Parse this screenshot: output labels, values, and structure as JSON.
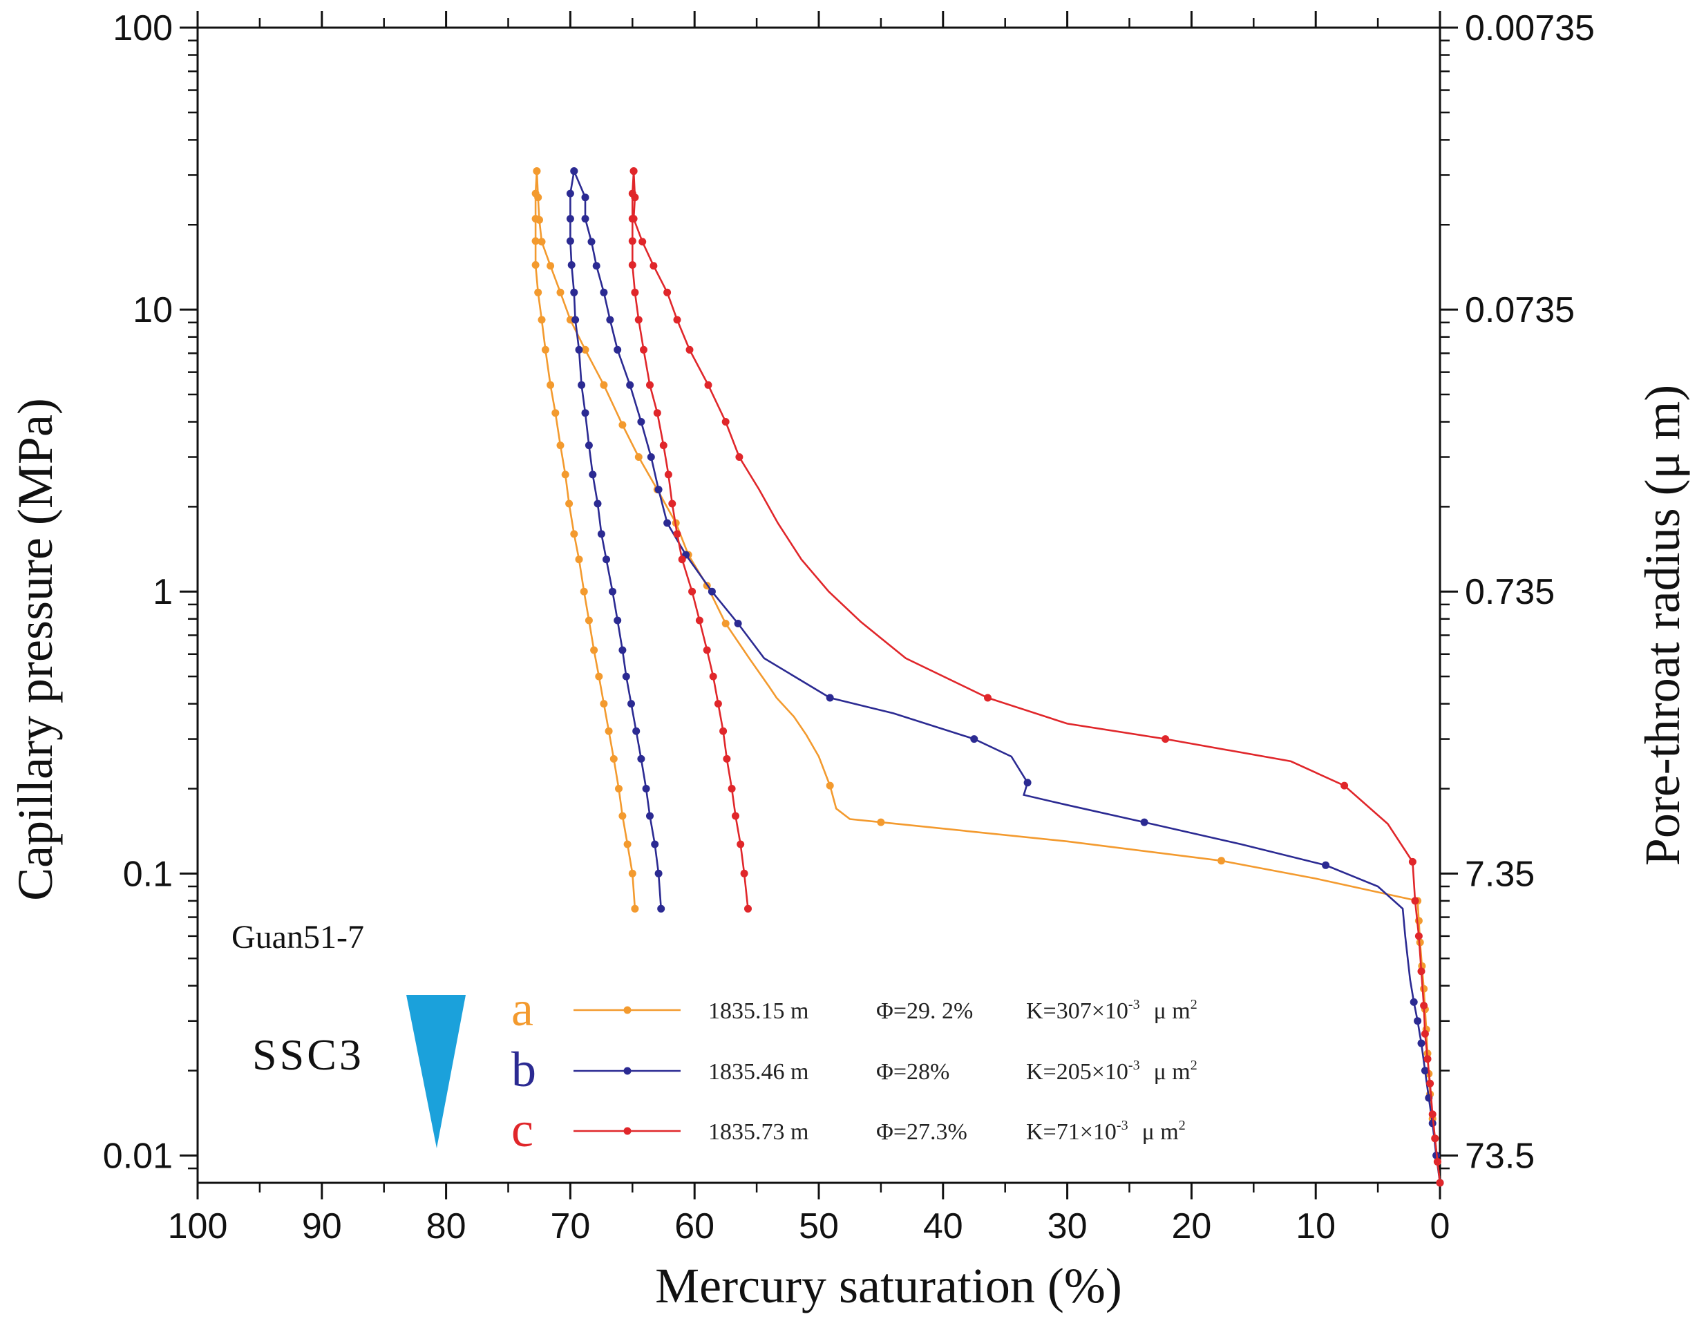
{
  "chart_data": {
    "type": "line",
    "xlabel": "Mercury  saturation (%)",
    "ylabel": "Capillary pressure (MPa)",
    "y2label": "Pore-throat radius (μ m)",
    "xlim": [
      100,
      0
    ],
    "ylim": [
      0.008,
      100
    ],
    "yscale": "log",
    "x_ticks": [
      "100",
      "90",
      "80",
      "70",
      "60",
      "50",
      "40",
      "30",
      "20",
      "10",
      "0"
    ],
    "y_ticks": [
      "100",
      "10",
      "1",
      "0.1",
      "0.01"
    ],
    "y2_ticks": [
      "0.00735",
      "0.0735",
      "0.735",
      "7.35",
      "73.5"
    ],
    "sample": "Guan51-7",
    "facies": "SSC3",
    "series": [
      {
        "name": "a",
        "color": "#F39A2E",
        "depth": "1835.15 m",
        "porosity": "Φ=29. 2%",
        "permeability_base": "K=307×10",
        "permeability_exp": "-3",
        "permeability_unit": "μ m",
        "permeability_unit_exp": "2",
        "intrusion": [
          [
            0.0,
            0.008
          ],
          [
            0.2,
            0.0095
          ],
          [
            0.4,
            0.0115
          ],
          [
            0.6,
            0.0135
          ],
          [
            0.8,
            0.0165
          ],
          [
            0.9,
            0.0195
          ],
          [
            1.0,
            0.023
          ],
          [
            1.1,
            0.028
          ],
          [
            1.2,
            0.033
          ],
          [
            1.3,
            0.039
          ],
          [
            1.45,
            0.047
          ],
          [
            1.6,
            0.057
          ],
          [
            1.7,
            0.068
          ],
          [
            1.8,
            0.08
          ],
          [
            10,
            0.096
          ],
          [
            17.6,
            0.111
          ],
          [
            30,
            0.13
          ],
          [
            45,
            0.152
          ],
          [
            47.5,
            0.156
          ],
          [
            48.6,
            0.17
          ],
          [
            49.1,
            0.205
          ],
          [
            50,
            0.26
          ],
          [
            51,
            0.31
          ],
          [
            52,
            0.36
          ],
          [
            53.4,
            0.42
          ],
          [
            54,
            0.46
          ],
          [
            55.6,
            0.58
          ],
          [
            57.5,
            0.77
          ],
          [
            59,
            1.05
          ],
          [
            60.5,
            1.35
          ],
          [
            61.5,
            1.75
          ],
          [
            63,
            2.3
          ],
          [
            64.5,
            3.0
          ],
          [
            65.8,
            3.9
          ],
          [
            67.3,
            5.4
          ],
          [
            68.8,
            7.2
          ],
          [
            70.0,
            9.2
          ],
          [
            70.8,
            11.5
          ],
          [
            71.6,
            14.3
          ],
          [
            72.3,
            17.4
          ],
          [
            72.5,
            20.8
          ],
          [
            72.6,
            25.0
          ],
          [
            72.7,
            31.0
          ]
        ],
        "extrusion": [
          [
            72.7,
            31.0
          ],
          [
            72.8,
            25.8
          ],
          [
            72.8,
            21.0
          ],
          [
            72.8,
            17.5
          ],
          [
            72.8,
            14.4
          ],
          [
            72.6,
            11.5
          ],
          [
            72.3,
            9.2
          ],
          [
            72.0,
            7.2
          ],
          [
            71.6,
            5.4
          ],
          [
            71.2,
            4.3
          ],
          [
            70.8,
            3.3
          ],
          [
            70.4,
            2.6
          ],
          [
            70.1,
            2.05
          ],
          [
            69.7,
            1.6
          ],
          [
            69.3,
            1.3
          ],
          [
            68.9,
            1.0
          ],
          [
            68.5,
            0.79
          ],
          [
            68.1,
            0.62
          ],
          [
            67.7,
            0.5
          ],
          [
            67.3,
            0.4
          ],
          [
            66.9,
            0.32
          ],
          [
            66.5,
            0.255
          ],
          [
            66.1,
            0.2
          ],
          [
            65.8,
            0.16
          ],
          [
            65.4,
            0.127
          ],
          [
            65.0,
            0.1
          ],
          [
            64.8,
            0.075
          ]
        ],
        "label_points": [
          [
            49.1,
            0.205
          ],
          [
            45,
            0.152
          ],
          [
            17.6,
            0.111
          ]
        ]
      },
      {
        "name": "b",
        "color": "#2B2A92",
        "depth": "1835.46 m",
        "porosity": "Φ=28%",
        "permeability_base": "K=205×10",
        "permeability_exp": "-3",
        "permeability_unit": "μ m",
        "permeability_unit_exp": "2",
        "intrusion": [
          [
            0.0,
            0.008
          ],
          [
            0.3,
            0.01
          ],
          [
            0.6,
            0.013
          ],
          [
            0.9,
            0.016
          ],
          [
            1.2,
            0.02
          ],
          [
            1.5,
            0.025
          ],
          [
            1.8,
            0.03
          ],
          [
            2.1,
            0.035
          ],
          [
            2.4,
            0.042
          ],
          [
            2.6,
            0.05
          ],
          [
            2.8,
            0.06
          ],
          [
            3.0,
            0.075
          ],
          [
            5,
            0.09
          ],
          [
            9.2,
            0.107
          ],
          [
            16,
            0.127
          ],
          [
            23.8,
            0.152
          ],
          [
            30,
            0.175
          ],
          [
            33.5,
            0.19
          ],
          [
            33.2,
            0.21
          ],
          [
            34.5,
            0.26
          ],
          [
            37.5,
            0.3
          ],
          [
            44,
            0.37
          ],
          [
            49.1,
            0.42
          ],
          [
            54.4,
            0.58
          ],
          [
            56.5,
            0.77
          ],
          [
            58.6,
            1.0
          ],
          [
            60.7,
            1.35
          ],
          [
            62.2,
            1.75
          ],
          [
            62.9,
            2.3
          ],
          [
            63.5,
            3.0
          ],
          [
            64.3,
            4.0
          ],
          [
            65.2,
            5.4
          ],
          [
            66.2,
            7.2
          ],
          [
            66.8,
            9.2
          ],
          [
            67.3,
            11.5
          ],
          [
            67.9,
            14.3
          ],
          [
            68.3,
            17.4
          ],
          [
            68.8,
            21.0
          ],
          [
            68.8,
            25.0
          ],
          [
            69.7,
            31.0
          ]
        ],
        "extrusion": [
          [
            69.7,
            31.0
          ],
          [
            70.0,
            25.8
          ],
          [
            70.0,
            21.0
          ],
          [
            70.0,
            17.5
          ],
          [
            69.9,
            14.4
          ],
          [
            69.7,
            11.5
          ],
          [
            69.6,
            9.2
          ],
          [
            69.3,
            7.2
          ],
          [
            69.1,
            5.4
          ],
          [
            68.8,
            4.3
          ],
          [
            68.5,
            3.3
          ],
          [
            68.2,
            2.6
          ],
          [
            67.8,
            2.05
          ],
          [
            67.5,
            1.6
          ],
          [
            67.1,
            1.3
          ],
          [
            66.6,
            1.0
          ],
          [
            66.2,
            0.79
          ],
          [
            65.8,
            0.62
          ],
          [
            65.5,
            0.5
          ],
          [
            65.1,
            0.4
          ],
          [
            64.7,
            0.32
          ],
          [
            64.3,
            0.255
          ],
          [
            63.9,
            0.2
          ],
          [
            63.6,
            0.16
          ],
          [
            63.2,
            0.127
          ],
          [
            62.9,
            0.1
          ],
          [
            62.7,
            0.075
          ]
        ],
        "label_points": [
          [
            49.1,
            0.42
          ],
          [
            37.5,
            0.3
          ],
          [
            33.2,
            0.21
          ],
          [
            23.8,
            0.152
          ],
          [
            9.2,
            0.107
          ]
        ]
      },
      {
        "name": "c",
        "color": "#E0262A",
        "depth": "1835.73 m",
        "porosity": "Φ=27.3%",
        "permeability_base": "K=71×10",
        "permeability_exp": "-3",
        "permeability_unit": "μ m",
        "permeability_unit_exp": "2",
        "intrusion": [
          [
            0.0,
            0.008
          ],
          [
            0.2,
            0.0095
          ],
          [
            0.4,
            0.0115
          ],
          [
            0.6,
            0.014
          ],
          [
            0.8,
            0.018
          ],
          [
            1.0,
            0.022
          ],
          [
            1.2,
            0.027
          ],
          [
            1.3,
            0.034
          ],
          [
            1.5,
            0.045
          ],
          [
            1.7,
            0.06
          ],
          [
            2.0,
            0.08
          ],
          [
            2.2,
            0.11
          ],
          [
            4.2,
            0.15
          ],
          [
            7.7,
            0.205
          ],
          [
            12,
            0.25
          ],
          [
            22.1,
            0.3
          ],
          [
            30,
            0.34
          ],
          [
            36.4,
            0.42
          ],
          [
            43,
            0.58
          ],
          [
            46.6,
            0.78
          ],
          [
            49.2,
            1.0
          ],
          [
            51.4,
            1.3
          ],
          [
            53.3,
            1.75
          ],
          [
            54.8,
            2.3
          ],
          [
            56.4,
            3.0
          ],
          [
            57.5,
            4.0
          ],
          [
            58.9,
            5.4
          ],
          [
            60.4,
            7.2
          ],
          [
            61.4,
            9.2
          ],
          [
            62.2,
            11.5
          ],
          [
            63.3,
            14.3
          ],
          [
            64.2,
            17.4
          ],
          [
            64.9,
            21.0
          ],
          [
            64.8,
            25.0
          ],
          [
            64.9,
            31.0
          ]
        ],
        "extrusion": [
          [
            64.9,
            31.0
          ],
          [
            65.0,
            25.8
          ],
          [
            65.0,
            21.0
          ],
          [
            65.0,
            17.5
          ],
          [
            65.0,
            14.4
          ],
          [
            64.8,
            11.5
          ],
          [
            64.5,
            9.2
          ],
          [
            64.1,
            7.2
          ],
          [
            63.6,
            5.4
          ],
          [
            63.0,
            4.3
          ],
          [
            62.5,
            3.3
          ],
          [
            62.1,
            2.6
          ],
          [
            61.8,
            2.05
          ],
          [
            61.4,
            1.6
          ],
          [
            61.0,
            1.3
          ],
          [
            60.2,
            1.0
          ],
          [
            59.6,
            0.79
          ],
          [
            59.0,
            0.62
          ],
          [
            58.5,
            0.5
          ],
          [
            58.1,
            0.4
          ],
          [
            57.7,
            0.32
          ],
          [
            57.4,
            0.255
          ],
          [
            57.0,
            0.2
          ],
          [
            56.7,
            0.16
          ],
          [
            56.3,
            0.127
          ],
          [
            56.0,
            0.1
          ],
          [
            55.7,
            0.075
          ]
        ],
        "label_points": [
          [
            36.4,
            0.42
          ],
          [
            22.1,
            0.3
          ],
          [
            7.7,
            0.205
          ]
        ]
      }
    ],
    "marker_color": "#1BA1DB"
  }
}
